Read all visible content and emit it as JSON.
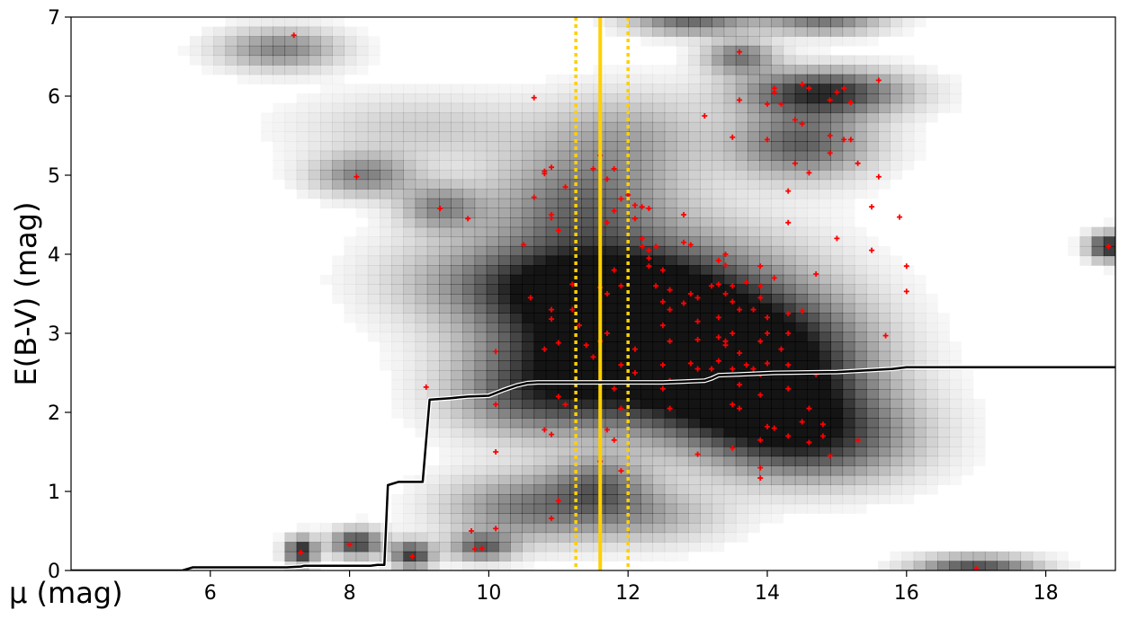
{
  "chart_data": {
    "type": "heatmap",
    "xlabel": "μ (mag)",
    "ylabel": "E(B-V) (mag)",
    "xlim": [
      4.0,
      19.0
    ],
    "ylim": [
      0,
      7
    ],
    "xticks": [
      6,
      8,
      10,
      12,
      14,
      16,
      18
    ],
    "yticks": [
      0,
      1,
      2,
      3,
      4,
      5,
      6,
      7
    ],
    "grid": false,
    "colors": {
      "heatmap": "#000000",
      "extinction_curve": "#000000",
      "points": "#ff0000",
      "reference_lines": "#ffd000"
    },
    "density_blobs": [
      {
        "x": 7.0,
        "y": 6.6,
        "sx": 0.6,
        "sy": 0.18,
        "w": 0.5
      },
      {
        "x": 8.2,
        "y": 5.0,
        "sx": 0.5,
        "sy": 0.18,
        "w": 0.5
      },
      {
        "x": 9.3,
        "y": 4.6,
        "sx": 0.4,
        "sy": 0.2,
        "w": 0.45
      },
      {
        "x": 7.3,
        "y": 0.25,
        "sx": 0.15,
        "sy": 0.12,
        "w": 0.9
      },
      {
        "x": 8.1,
        "y": 0.35,
        "sx": 0.25,
        "sy": 0.12,
        "w": 0.8
      },
      {
        "x": 8.9,
        "y": 0.2,
        "sx": 0.2,
        "sy": 0.12,
        "w": 0.8
      },
      {
        "x": 9.9,
        "y": 0.3,
        "sx": 0.3,
        "sy": 0.12,
        "w": 0.6
      },
      {
        "x": 11.5,
        "y": 2.9,
        "sx": 1.1,
        "sy": 0.6,
        "w": 0.85
      },
      {
        "x": 12.8,
        "y": 3.2,
        "sx": 1.3,
        "sy": 0.7,
        "w": 0.8
      },
      {
        "x": 14.0,
        "y": 2.7,
        "sx": 1.0,
        "sy": 0.5,
        "w": 0.8
      },
      {
        "x": 13.8,
        "y": 2.1,
        "sx": 1.2,
        "sy": 0.35,
        "w": 0.7
      },
      {
        "x": 14.6,
        "y": 1.6,
        "sx": 1.0,
        "sy": 0.35,
        "w": 0.7
      },
      {
        "x": 11.3,
        "y": 4.6,
        "sx": 0.9,
        "sy": 0.5,
        "w": 0.55
      },
      {
        "x": 11.5,
        "y": 3.6,
        "sx": 1.0,
        "sy": 0.3,
        "w": 0.6
      },
      {
        "x": 14.8,
        "y": 6.05,
        "sx": 0.8,
        "sy": 0.2,
        "w": 0.85
      },
      {
        "x": 14.5,
        "y": 5.4,
        "sx": 0.7,
        "sy": 0.3,
        "w": 0.65
      },
      {
        "x": 13.6,
        "y": 6.5,
        "sx": 0.35,
        "sy": 0.15,
        "w": 0.55
      },
      {
        "x": 12.9,
        "y": 6.95,
        "sx": 0.6,
        "sy": 0.12,
        "w": 0.6
      },
      {
        "x": 14.8,
        "y": 6.95,
        "sx": 0.6,
        "sy": 0.12,
        "w": 0.55
      },
      {
        "x": 10.5,
        "y": 0.8,
        "sx": 0.8,
        "sy": 0.3,
        "w": 0.5
      },
      {
        "x": 11.6,
        "y": 1.1,
        "sx": 0.5,
        "sy": 0.25,
        "w": 0.45
      },
      {
        "x": 10.6,
        "y": 2.2,
        "sx": 0.8,
        "sy": 0.35,
        "w": 0.45
      },
      {
        "x": 9.8,
        "y": 3.7,
        "sx": 1.0,
        "sy": 0.4,
        "w": 0.3
      },
      {
        "x": 17.0,
        "y": 0.05,
        "sx": 0.6,
        "sy": 0.1,
        "w": 0.7
      },
      {
        "x": 18.9,
        "y": 4.1,
        "sx": 0.2,
        "sy": 0.12,
        "w": 0.9
      },
      {
        "x": 12.2,
        "y": 0.7,
        "sx": 0.8,
        "sy": 0.25,
        "w": 0.35
      },
      {
        "x": 9.0,
        "y": 5.6,
        "sx": 1.2,
        "sy": 0.3,
        "w": 0.2
      },
      {
        "x": 12.0,
        "y": 5.5,
        "sx": 0.8,
        "sy": 0.4,
        "w": 0.3
      }
    ],
    "extinction_curve": {
      "x": [
        4.0,
        5.6,
        5.75,
        7.1,
        7.3,
        7.35,
        7.5,
        8.3,
        8.4,
        8.5,
        8.55,
        8.7,
        9.05,
        9.15,
        9.45,
        9.7,
        10.0,
        10.2,
        10.4,
        10.55,
        10.7,
        11.5,
        12.5,
        13.1,
        13.2,
        13.3,
        13.6,
        14.1,
        15.0,
        15.4,
        15.8,
        16.0,
        19.0
      ],
      "y": [
        0.0,
        0.0,
        0.04,
        0.04,
        0.05,
        0.06,
        0.06,
        0.06,
        0.07,
        0.07,
        1.08,
        1.12,
        1.12,
        2.16,
        2.18,
        2.2,
        2.21,
        2.28,
        2.34,
        2.37,
        2.38,
        2.38,
        2.38,
        2.4,
        2.43,
        2.47,
        2.48,
        2.5,
        2.51,
        2.53,
        2.55,
        2.57,
        2.57
      ]
    },
    "reference_lines": {
      "solid": 11.6,
      "dotted": [
        11.25,
        12.0
      ]
    },
    "points": [
      [
        7.2,
        6.77
      ],
      [
        8.1,
        4.98
      ],
      [
        9.3,
        4.58
      ],
      [
        9.7,
        4.45
      ],
      [
        7.3,
        0.23
      ],
      [
        8.0,
        0.33
      ],
      [
        8.9,
        0.18
      ],
      [
        9.75,
        0.5
      ],
      [
        9.8,
        0.27
      ],
      [
        9.9,
        0.28
      ],
      [
        10.1,
        0.53
      ],
      [
        9.1,
        2.32
      ],
      [
        10.1,
        2.1
      ],
      [
        10.1,
        1.5
      ],
      [
        10.1,
        2.77
      ],
      [
        10.5,
        4.12
      ],
      [
        10.65,
        5.98
      ],
      [
        10.65,
        4.72
      ],
      [
        10.6,
        3.45
      ],
      [
        10.8,
        5.05
      ],
      [
        10.8,
        5.02
      ],
      [
        10.9,
        5.1
      ],
      [
        10.9,
        4.5
      ],
      [
        10.9,
        4.46
      ],
      [
        11.1,
        4.85
      ],
      [
        11.0,
        4.3
      ],
      [
        10.9,
        3.3
      ],
      [
        10.9,
        3.18
      ],
      [
        11.0,
        2.88
      ],
      [
        10.8,
        2.8
      ],
      [
        11.0,
        2.2
      ],
      [
        11.1,
        2.1
      ],
      [
        10.8,
        1.78
      ],
      [
        10.9,
        1.72
      ],
      [
        11.0,
        0.88
      ],
      [
        10.9,
        0.66
      ],
      [
        11.2,
        3.62
      ],
      [
        11.2,
        3.3
      ],
      [
        11.3,
        3.1
      ],
      [
        11.4,
        2.85
      ],
      [
        11.5,
        5.08
      ],
      [
        11.6,
        5.25
      ],
      [
        11.7,
        4.95
      ],
      [
        11.8,
        5.08
      ],
      [
        11.8,
        4.55
      ],
      [
        11.7,
        4.4
      ],
      [
        11.9,
        4.7
      ],
      [
        12.0,
        4.75
      ],
      [
        12.1,
        4.62
      ],
      [
        12.2,
        4.6
      ],
      [
        12.1,
        4.45
      ],
      [
        12.3,
        4.58
      ],
      [
        11.6,
        3.58
      ],
      [
        11.7,
        3.5
      ],
      [
        11.8,
        3.8
      ],
      [
        11.9,
        3.6
      ],
      [
        11.7,
        3.0
      ],
      [
        11.6,
        2.9
      ],
      [
        11.5,
        2.7
      ],
      [
        11.9,
        2.6
      ],
      [
        11.8,
        2.3
      ],
      [
        11.9,
        2.05
      ],
      [
        11.7,
        1.78
      ],
      [
        11.8,
        1.65
      ],
      [
        11.9,
        1.26
      ],
      [
        11.6,
        1.38
      ],
      [
        12.1,
        2.8
      ],
      [
        12.1,
        2.5
      ],
      [
        12.2,
        4.2
      ],
      [
        12.2,
        4.1
      ],
      [
        12.3,
        4.05
      ],
      [
        12.3,
        3.95
      ],
      [
        12.4,
        4.1
      ],
      [
        12.3,
        3.85
      ],
      [
        12.5,
        3.8
      ],
      [
        12.4,
        3.6
      ],
      [
        12.5,
        3.4
      ],
      [
        12.6,
        3.55
      ],
      [
        12.6,
        3.3
      ],
      [
        12.5,
        3.1
      ],
      [
        12.6,
        2.9
      ],
      [
        12.5,
        2.6
      ],
      [
        12.6,
        2.4
      ],
      [
        12.5,
        2.3
      ],
      [
        12.6,
        2.05
      ],
      [
        12.8,
        4.5
      ],
      [
        12.8,
        4.15
      ],
      [
        12.9,
        4.12
      ],
      [
        12.8,
        3.38
      ],
      [
        12.9,
        3.5
      ],
      [
        13.0,
        3.45
      ],
      [
        13.0,
        3.15
      ],
      [
        13.0,
        2.92
      ],
      [
        12.9,
        2.62
      ],
      [
        13.0,
        2.55
      ],
      [
        13.0,
        1.47
      ],
      [
        13.1,
        5.75
      ],
      [
        13.2,
        3.6
      ],
      [
        13.3,
        3.92
      ],
      [
        13.3,
        3.62
      ],
      [
        13.4,
        4.0
      ],
      [
        13.4,
        3.86
      ],
      [
        13.4,
        3.5
      ],
      [
        13.3,
        3.2
      ],
      [
        13.3,
        2.95
      ],
      [
        13.4,
        2.9
      ],
      [
        13.4,
        2.85
      ],
      [
        13.3,
        2.65
      ],
      [
        13.2,
        2.55
      ],
      [
        13.5,
        5.48
      ],
      [
        13.6,
        5.95
      ],
      [
        13.6,
        6.56
      ],
      [
        13.5,
        3.6
      ],
      [
        13.5,
        3.4
      ],
      [
        13.6,
        3.3
      ],
      [
        13.5,
        3.0
      ],
      [
        13.6,
        2.75
      ],
      [
        13.5,
        2.55
      ],
      [
        13.6,
        2.35
      ],
      [
        13.5,
        2.1
      ],
      [
        13.5,
        1.55
      ],
      [
        13.6,
        2.05
      ],
      [
        13.7,
        3.65
      ],
      [
        13.7,
        2.6
      ],
      [
        13.8,
        3.3
      ],
      [
        13.8,
        2.55
      ],
      [
        13.9,
        3.85
      ],
      [
        13.9,
        3.6
      ],
      [
        13.9,
        3.45
      ],
      [
        13.9,
        2.9
      ],
      [
        13.9,
        2.48
      ],
      [
        13.9,
        2.22
      ],
      [
        13.9,
        1.65
      ],
      [
        13.9,
        1.3
      ],
      [
        13.9,
        1.17
      ],
      [
        14.0,
        5.45
      ],
      [
        14.0,
        5.9
      ],
      [
        14.0,
        3.2
      ],
      [
        14.0,
        3.0
      ],
      [
        14.0,
        2.62
      ],
      [
        14.0,
        1.82
      ],
      [
        14.1,
        1.8
      ],
      [
        14.1,
        6.1
      ],
      [
        14.1,
        6.05
      ],
      [
        14.2,
        5.9
      ],
      [
        14.1,
        3.7
      ],
      [
        14.2,
        2.8
      ],
      [
        14.3,
        4.8
      ],
      [
        14.3,
        4.4
      ],
      [
        14.3,
        3.25
      ],
      [
        14.3,
        3.0
      ],
      [
        14.3,
        2.6
      ],
      [
        14.3,
        2.3
      ],
      [
        14.3,
        1.7
      ],
      [
        14.4,
        5.15
      ],
      [
        14.4,
        5.7
      ],
      [
        14.5,
        6.15
      ],
      [
        14.5,
        5.65
      ],
      [
        14.6,
        6.1
      ],
      [
        14.6,
        5.03
      ],
      [
        14.5,
        3.28
      ],
      [
        14.5,
        1.88
      ],
      [
        14.6,
        1.62
      ],
      [
        14.6,
        2.05
      ],
      [
        14.7,
        3.75
      ],
      [
        14.7,
        2.48
      ],
      [
        14.8,
        1.7
      ],
      [
        14.8,
        1.85
      ],
      [
        14.9,
        5.95
      ],
      [
        14.9,
        5.5
      ],
      [
        14.9,
        5.28
      ],
      [
        14.9,
        1.45
      ],
      [
        15.0,
        6.05
      ],
      [
        15.0,
        4.2
      ],
      [
        15.1,
        5.45
      ],
      [
        15.2,
        5.45
      ],
      [
        15.2,
        5.92
      ],
      [
        15.3,
        5.15
      ],
      [
        15.3,
        1.65
      ],
      [
        15.5,
        4.6
      ],
      [
        15.5,
        4.05
      ],
      [
        15.6,
        6.2
      ],
      [
        15.6,
        4.98
      ],
      [
        15.7,
        2.97
      ],
      [
        15.9,
        4.47
      ],
      [
        16.0,
        3.85
      ],
      [
        16.0,
        3.53
      ],
      [
        18.9,
        4.1
      ],
      [
        17.0,
        0.02
      ],
      [
        15.1,
        6.1
      ]
    ]
  }
}
